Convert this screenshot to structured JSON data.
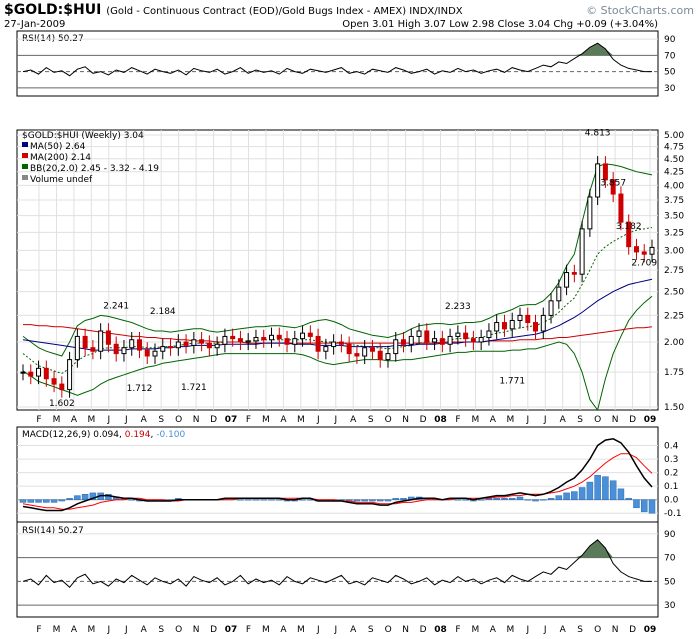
{
  "header": {
    "title": "$GOLD:$HUI",
    "subtitle": "(Gold - Continuous Contract (EOD)/Gold Bugs Index - AMEX)  INDX/INDX",
    "date": "27-Jan-2009",
    "quote": "Open 3.01  High 3.07  Low 2.98  Close 3.04  Chg +0.09 (+3.04%)",
    "watermark": "© StockCharts.com"
  },
  "panels": {
    "rsi_top_label": "RSI(14) 50.27",
    "main_label": "$GOLD:$HUI (Weekly) 3.04",
    "ma50_label": "MA(50) 2.64",
    "ma200_label": "MA(200) 2.14",
    "bb_label": "BB(20,2.0) 2.45 - 3.32 - 4.19",
    "vol_label": "Volume undef",
    "macd_label_prefix": "MACD(12,26,9)",
    "macd_val1": "0.094",
    "macd_val2": "0.194",
    "macd_val3": "-0.100",
    "rsi_bottom_label": "RSI(14) 50.27"
  },
  "colors": {
    "price_up": "#000000",
    "price_down": "#cc0000",
    "ma50": "#000080",
    "ma200": "#cc0000",
    "bollinger": "#006400",
    "bb_mid": "#006400",
    "macd_line": "#000000",
    "signal_line": "#ff0000",
    "histogram": "#4a90d9",
    "rsi_fill": "#5a7a5a",
    "grid": "#e0e0e0"
  },
  "chart_data": [
    {
      "type": "line",
      "title": "RSI(14)",
      "yticks": [
        90,
        70,
        50,
        30
      ],
      "ylim": [
        20,
        100
      ],
      "reference_lines": [
        70,
        50,
        30
      ],
      "last_value": 50.27,
      "series": [
        {
          "name": "RSI(14)",
          "values": [
            50,
            52,
            47,
            55,
            49,
            51,
            45,
            53,
            56,
            48,
            50,
            46,
            52,
            49,
            55,
            51,
            47,
            53,
            50,
            48,
            52,
            46,
            54,
            51,
            49,
            53,
            47,
            50,
            55,
            48,
            52,
            49,
            51,
            47,
            54,
            50,
            48,
            53,
            51,
            49,
            52,
            55,
            48,
            50,
            47,
            53,
            51,
            49,
            55,
            52,
            48,
            50,
            53,
            47,
            51,
            49,
            54,
            50,
            52,
            48,
            51,
            53,
            49,
            55,
            52,
            50,
            54,
            58,
            56,
            62,
            60,
            66,
            72,
            80,
            85,
            78,
            65,
            58,
            54,
            52,
            50,
            50
          ]
        }
      ]
    },
    {
      "type": "candlestick",
      "title": "$GOLD:$HUI (Weekly)",
      "ylim": [
        1.5,
        5.0
      ],
      "log_scale": true,
      "yticks": [
        5.0,
        4.75,
        4.5,
        4.25,
        4.0,
        3.75,
        3.5,
        3.25,
        3.0,
        2.75,
        2.5,
        2.25,
        2.0,
        1.75,
        1.5
      ],
      "x_labels": [
        "F",
        "M",
        "A",
        "M",
        "J",
        "J",
        "A",
        "S",
        "O",
        "N",
        "D",
        "07",
        "F",
        "M",
        "A",
        "M",
        "J",
        "J",
        "A",
        "S",
        "O",
        "N",
        "D",
        "08",
        "F",
        "M",
        "A",
        "M",
        "J",
        "J",
        "A",
        "S",
        "O",
        "N",
        "D",
        "09"
      ],
      "annotations": [
        {
          "label": "1.602",
          "value": 1.602
        },
        {
          "label": "2.241",
          "value": 2.241
        },
        {
          "label": "1.712",
          "value": 1.712
        },
        {
          "label": "2.184",
          "value": 2.184
        },
        {
          "label": "1.721",
          "value": 1.721
        },
        {
          "label": "2.233",
          "value": 2.233
        },
        {
          "label": "1.771",
          "value": 1.771
        },
        {
          "label": "4.813",
          "value": 4.813
        },
        {
          "label": "3.857",
          "value": 3.857
        },
        {
          "label": "3.182",
          "value": 3.182
        },
        {
          "label": "2.709",
          "value": 2.709
        }
      ],
      "close": [
        1.75,
        1.72,
        1.78,
        1.7,
        1.66,
        1.62,
        1.85,
        2.05,
        1.95,
        1.92,
        2.1,
        1.98,
        1.9,
        1.95,
        2.02,
        1.93,
        1.88,
        1.92,
        1.96,
        1.95,
        2.0,
        1.97,
        2.02,
        1.99,
        1.95,
        1.98,
        2.05,
        2.03,
        2.0,
        2.01,
        2.04,
        2.02,
        2.06,
        2.03,
        1.98,
        2.03,
        2.08,
        2.05,
        1.92,
        1.96,
        2.0,
        1.98,
        1.9,
        1.88,
        1.95,
        1.92,
        1.85,
        1.9,
        2.02,
        1.98,
        2.05,
        2.1,
        2.0,
        2.03,
        1.98,
        2.05,
        2.08,
        2.03,
        2.0,
        2.04,
        2.1,
        2.18,
        2.12,
        2.2,
        2.25,
        2.18,
        2.1,
        2.25,
        2.4,
        2.55,
        2.72,
        2.7,
        3.3,
        3.8,
        4.4,
        4.1,
        3.85,
        3.4,
        3.05,
        2.98,
        2.95,
        3.04
      ],
      "ma50": [
        2.02,
        2.01,
        2.0,
        1.99,
        1.98,
        1.97,
        1.96,
        1.95,
        1.94,
        1.93,
        1.93,
        1.93,
        1.93,
        1.93,
        1.94,
        1.94,
        1.94,
        1.94,
        1.95,
        1.95,
        1.96,
        1.96,
        1.97,
        1.97,
        1.97,
        1.97,
        1.98,
        1.98,
        1.98,
        1.98,
        1.98,
        1.99,
        1.99,
        1.99,
        1.99,
        1.98,
        1.98,
        1.98,
        1.97,
        1.97,
        1.97,
        1.97,
        1.96,
        1.96,
        1.96,
        1.96,
        1.96,
        1.96,
        1.97,
        1.97,
        1.97,
        1.98,
        1.98,
        1.98,
        1.99,
        1.99,
        1.99,
        2.0,
        2.0,
        2.0,
        2.01,
        2.02,
        2.03,
        2.04,
        2.05,
        2.06,
        2.07,
        2.09,
        2.12,
        2.15,
        2.19,
        2.23,
        2.28,
        2.34,
        2.4,
        2.45,
        2.5,
        2.54,
        2.58,
        2.6,
        2.62,
        2.64
      ],
      "ma200": [
        2.16,
        2.16,
        2.15,
        2.15,
        2.14,
        2.14,
        2.13,
        2.12,
        2.11,
        2.1,
        2.09,
        2.08,
        2.07,
        2.06,
        2.05,
        2.05,
        2.04,
        2.04,
        2.03,
        2.03,
        2.02,
        2.02,
        2.01,
        2.01,
        2.01,
        2.0,
        2.0,
        2.0,
        2.0,
        1.99,
        1.99,
        1.99,
        1.99,
        1.99,
        1.99,
        1.99,
        1.99,
        1.99,
        1.99,
        1.99,
        1.99,
        1.99,
        1.99,
        1.99,
        1.99,
        1.99,
        1.99,
        1.99,
        1.99,
        1.99,
        1.99,
        1.99,
        1.99,
        1.99,
        2.0,
        2.0,
        2.0,
        2.0,
        2.0,
        2.0,
        2.01,
        2.01,
        2.01,
        2.01,
        2.02,
        2.02,
        2.02,
        2.03,
        2.03,
        2.04,
        2.04,
        2.05,
        2.06,
        2.07,
        2.08,
        2.09,
        2.1,
        2.11,
        2.12,
        2.13,
        2.13,
        2.14
      ],
      "bb_upper": [
        2.05,
        2.0,
        1.95,
        1.92,
        1.9,
        1.88,
        2.0,
        2.15,
        2.2,
        2.22,
        2.25,
        2.24,
        2.22,
        2.2,
        2.18,
        2.15,
        2.12,
        2.1,
        2.1,
        2.09,
        2.1,
        2.11,
        2.12,
        2.12,
        2.1,
        2.09,
        2.1,
        2.11,
        2.12,
        2.13,
        2.14,
        2.14,
        2.15,
        2.15,
        2.14,
        2.13,
        2.15,
        2.18,
        2.2,
        2.21,
        2.19,
        2.16,
        2.12,
        2.1,
        2.08,
        2.06,
        2.05,
        2.04,
        2.06,
        2.08,
        2.12,
        2.15,
        2.16,
        2.17,
        2.17,
        2.16,
        2.17,
        2.18,
        2.18,
        2.19,
        2.22,
        2.26,
        2.28,
        2.31,
        2.35,
        2.36,
        2.36,
        2.4,
        2.48,
        2.6,
        2.8,
        2.95,
        3.4,
        3.9,
        4.35,
        4.4,
        4.38,
        4.35,
        4.3,
        4.25,
        4.22,
        4.19
      ],
      "bb_mid": [
        1.9,
        1.85,
        1.8,
        1.78,
        1.76,
        1.74,
        1.78,
        1.84,
        1.88,
        1.9,
        1.94,
        1.95,
        1.95,
        1.95,
        1.96,
        1.96,
        1.95,
        1.95,
        1.96,
        1.96,
        1.97,
        1.98,
        1.99,
        1.99,
        1.99,
        1.99,
        2.0,
        2.0,
        2.0,
        2.01,
        2.01,
        2.02,
        2.02,
        2.02,
        2.02,
        2.02,
        2.02,
        2.02,
        2.01,
        2.0,
        2.0,
        1.99,
        1.98,
        1.97,
        1.96,
        1.95,
        1.95,
        1.94,
        1.95,
        1.96,
        1.97,
        1.99,
        2.0,
        2.01,
        2.02,
        2.02,
        2.03,
        2.03,
        2.04,
        2.04,
        2.06,
        2.08,
        2.09,
        2.11,
        2.13,
        2.14,
        2.15,
        2.18,
        2.22,
        2.28,
        2.36,
        2.43,
        2.58,
        2.75,
        2.95,
        3.05,
        3.12,
        3.18,
        3.24,
        3.28,
        3.3,
        3.32
      ],
      "bb_lower": [
        1.76,
        1.72,
        1.68,
        1.66,
        1.64,
        1.62,
        1.6,
        1.58,
        1.6,
        1.62,
        1.66,
        1.69,
        1.71,
        1.73,
        1.75,
        1.77,
        1.79,
        1.8,
        1.82,
        1.83,
        1.84,
        1.85,
        1.86,
        1.87,
        1.88,
        1.89,
        1.9,
        1.9,
        1.9,
        1.9,
        1.9,
        1.9,
        1.9,
        1.9,
        1.9,
        1.9,
        1.89,
        1.87,
        1.84,
        1.82,
        1.81,
        1.82,
        1.83,
        1.84,
        1.85,
        1.85,
        1.85,
        1.84,
        1.84,
        1.85,
        1.85,
        1.86,
        1.87,
        1.88,
        1.89,
        1.9,
        1.91,
        1.91,
        1.92,
        1.92,
        1.92,
        1.92,
        1.92,
        1.93,
        1.93,
        1.94,
        1.94,
        1.96,
        1.98,
        2.0,
        1.98,
        1.9,
        1.75,
        1.55,
        1.48,
        1.7,
        1.9,
        2.05,
        2.2,
        2.3,
        2.38,
        2.45
      ]
    },
    {
      "type": "line",
      "title": "MACD(12,26,9)",
      "ylim": [
        -0.15,
        0.5
      ],
      "yticks": [
        0.4,
        0.3,
        0.2,
        0.1,
        0.0,
        -0.1
      ],
      "series": [
        {
          "name": "MACD",
          "values": [
            -0.05,
            -0.06,
            -0.07,
            -0.08,
            -0.08,
            -0.08,
            -0.06,
            -0.03,
            -0.01,
            0.01,
            0.03,
            0.03,
            0.02,
            0.01,
            0.01,
            0.0,
            -0.01,
            -0.01,
            -0.01,
            -0.01,
            0.0,
            0.0,
            0.0,
            0.0,
            0.0,
            0.0,
            0.01,
            0.01,
            0.01,
            0.01,
            0.01,
            0.01,
            0.01,
            0.01,
            0.0,
            0.0,
            0.01,
            0.01,
            -0.01,
            -0.01,
            -0.01,
            -0.01,
            -0.02,
            -0.03,
            -0.03,
            -0.03,
            -0.04,
            -0.04,
            -0.02,
            -0.01,
            0.0,
            0.01,
            0.01,
            0.01,
            0.0,
            0.01,
            0.01,
            0.01,
            0.0,
            0.01,
            0.02,
            0.03,
            0.03,
            0.04,
            0.05,
            0.04,
            0.03,
            0.04,
            0.06,
            0.09,
            0.13,
            0.16,
            0.22,
            0.3,
            0.4,
            0.44,
            0.45,
            0.42,
            0.35,
            0.25,
            0.16,
            0.094
          ]
        },
        {
          "name": "Signal",
          "values": [
            -0.03,
            -0.04,
            -0.05,
            -0.06,
            -0.06,
            -0.07,
            -0.07,
            -0.06,
            -0.05,
            -0.04,
            -0.02,
            -0.01,
            0.0,
            0.0,
            0.01,
            0.01,
            0.0,
            0.0,
            0.0,
            -0.01,
            -0.01,
            0.0,
            0.0,
            0.0,
            0.0,
            0.0,
            0.0,
            0.0,
            0.01,
            0.01,
            0.01,
            0.01,
            0.01,
            0.01,
            0.01,
            0.01,
            0.01,
            0.01,
            0.0,
            0.0,
            0.0,
            -0.01,
            -0.01,
            -0.02,
            -0.02,
            -0.02,
            -0.03,
            -0.03,
            -0.03,
            -0.02,
            -0.02,
            -0.01,
            0.0,
            0.0,
            0.0,
            0.0,
            0.01,
            0.01,
            0.01,
            0.01,
            0.01,
            0.02,
            0.02,
            0.03,
            0.03,
            0.04,
            0.04,
            0.04,
            0.05,
            0.06,
            0.08,
            0.1,
            0.13,
            0.17,
            0.22,
            0.27,
            0.31,
            0.34,
            0.34,
            0.31,
            0.25,
            0.194
          ]
        },
        {
          "name": "Histogram",
          "values": [
            -0.02,
            -0.02,
            -0.02,
            -0.02,
            -0.02,
            -0.01,
            0.01,
            0.03,
            0.04,
            0.05,
            0.05,
            0.04,
            0.02,
            0.01,
            0.0,
            -0.01,
            -0.01,
            -0.01,
            -0.01,
            0.0,
            0.01,
            0.0,
            0.0,
            0.0,
            0.0,
            0.0,
            0.01,
            0.01,
            0.0,
            0.0,
            0.0,
            0.0,
            0.0,
            0.0,
            -0.01,
            -0.01,
            0.0,
            0.0,
            -0.01,
            -0.01,
            -0.01,
            0.0,
            -0.01,
            -0.01,
            -0.01,
            -0.01,
            -0.01,
            -0.01,
            0.01,
            0.01,
            0.02,
            0.02,
            0.01,
            0.01,
            0.0,
            0.01,
            0.0,
            0.0,
            -0.01,
            0.0,
            0.01,
            0.01,
            0.01,
            0.01,
            0.02,
            0.0,
            -0.01,
            0.0,
            0.01,
            0.03,
            0.05,
            0.06,
            0.09,
            0.13,
            0.18,
            0.17,
            0.14,
            0.08,
            0.01,
            -0.06,
            -0.09,
            -0.1
          ]
        }
      ]
    },
    {
      "type": "line",
      "title": "RSI(14)",
      "yticks": [
        90,
        70,
        50,
        30
      ],
      "ylim": [
        20,
        100
      ],
      "last_value": 50.27
    }
  ]
}
